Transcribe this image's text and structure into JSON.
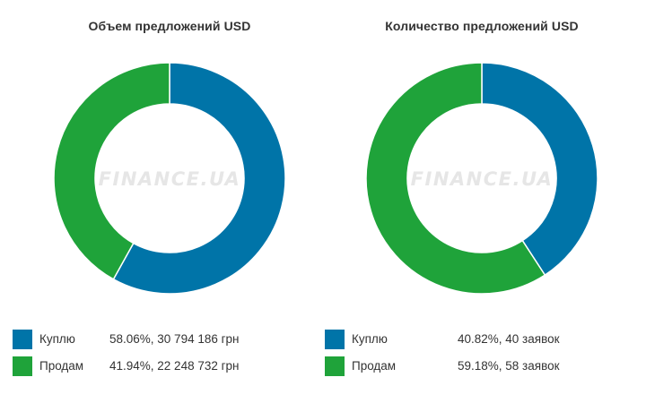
{
  "colors": {
    "buy": "#0074a8",
    "sell": "#1fa33a",
    "watermark": "#e6e6e6"
  },
  "watermark_text": "FINANCE.UA",
  "chart_data": [
    {
      "type": "pie",
      "title": "Объем предложений USD",
      "categories": [
        "Куплю",
        "Продам"
      ],
      "values": [
        58.06,
        41.94
      ],
      "legend": [
        {
          "label": "Куплю",
          "value_text": "58.06%, 30 794 186 грн"
        },
        {
          "label": "Продам",
          "value_text": "41.94%, 22 248 732 грн"
        }
      ],
      "legend_position": "bottom"
    },
    {
      "type": "pie",
      "title": "Количество предложений USD",
      "categories": [
        "Куплю",
        "Продам"
      ],
      "values": [
        40.82,
        59.18
      ],
      "legend": [
        {
          "label": "Куплю",
          "value_text": "40.82%, 40 заявок"
        },
        {
          "label": "Продам",
          "value_text": "59.18%, 58 заявок"
        }
      ],
      "legend_position": "bottom"
    }
  ]
}
